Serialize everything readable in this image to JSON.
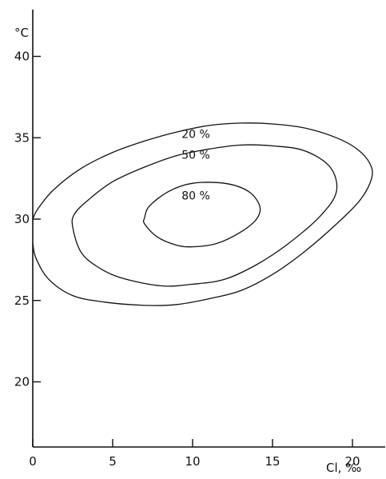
{
  "chart_data": {
    "type": "contour",
    "xlabel": "Cl, ‰",
    "ylabel": "°C",
    "xlim": [
      0,
      22
    ],
    "ylim": [
      16,
      42
    ],
    "xticks": [
      0,
      5,
      10,
      15,
      20
    ],
    "yticks": [
      20,
      25,
      30,
      35,
      40
    ],
    "grid": false,
    "series": [
      {
        "name": "20 %",
        "closed": false,
        "points": [
          [
            0,
            28.5
          ],
          [
            0.2,
            27.6
          ],
          [
            1.0,
            26.3
          ],
          [
            2.5,
            25.3
          ],
          [
            4.5,
            24.9
          ],
          [
            7.0,
            24.7
          ],
          [
            9.0,
            24.75
          ],
          [
            11.0,
            25.1
          ],
          [
            13.0,
            25.6
          ],
          [
            15.0,
            26.6
          ],
          [
            17.0,
            28.0
          ],
          [
            19.0,
            29.7
          ],
          [
            20.5,
            31.2
          ],
          [
            21.2,
            32.5
          ],
          [
            21.1,
            33.4
          ],
          [
            20.3,
            34.3
          ],
          [
            19.0,
            35.0
          ],
          [
            17.0,
            35.6
          ],
          [
            15.0,
            35.85
          ],
          [
            13.0,
            35.9
          ],
          [
            11.0,
            35.75
          ],
          [
            9.0,
            35.35
          ],
          [
            7.0,
            34.8
          ],
          [
            5.0,
            34.1
          ],
          [
            3.0,
            33.1
          ],
          [
            1.3,
            31.8
          ],
          [
            0.3,
            30.6
          ],
          [
            0,
            30.0
          ]
        ]
      },
      {
        "name": "50 %",
        "closed": true,
        "points": [
          [
            2.5,
            29.5
          ],
          [
            3.0,
            28.0
          ],
          [
            4.0,
            27.1
          ],
          [
            5.5,
            26.4
          ],
          [
            8.0,
            25.9
          ],
          [
            10.0,
            26.0
          ],
          [
            12.0,
            26.3
          ],
          [
            14.0,
            27.2
          ],
          [
            16.0,
            28.5
          ],
          [
            18.0,
            30.2
          ],
          [
            19.0,
            31.7
          ],
          [
            18.6,
            33.2
          ],
          [
            17.0,
            34.2
          ],
          [
            15.0,
            34.5
          ],
          [
            13.0,
            34.55
          ],
          [
            11.0,
            34.3
          ],
          [
            9.0,
            33.9
          ],
          [
            7.0,
            33.2
          ],
          [
            5.0,
            32.3
          ],
          [
            3.5,
            31.2
          ],
          [
            2.6,
            30.3
          ]
        ]
      },
      {
        "name": "80 %",
        "closed": true,
        "points": [
          [
            7.0,
            29.7
          ],
          [
            7.8,
            28.9
          ],
          [
            9.0,
            28.4
          ],
          [
            10.0,
            28.3
          ],
          [
            11.5,
            28.5
          ],
          [
            13.0,
            29.2
          ],
          [
            14.0,
            30.0
          ],
          [
            14.2,
            30.8
          ],
          [
            13.5,
            31.7
          ],
          [
            12.0,
            32.2
          ],
          [
            10.0,
            32.2
          ],
          [
            8.5,
            31.7
          ],
          [
            7.3,
            30.8
          ],
          [
            7.0,
            30.1
          ]
        ]
      }
    ],
    "annotations": [
      {
        "text": "20 %",
        "x": 10.2,
        "y": 35.0
      },
      {
        "text": "50 %",
        "x": 10.2,
        "y": 33.7
      },
      {
        "text": "80 %",
        "x": 10.2,
        "y": 31.2
      }
    ]
  }
}
